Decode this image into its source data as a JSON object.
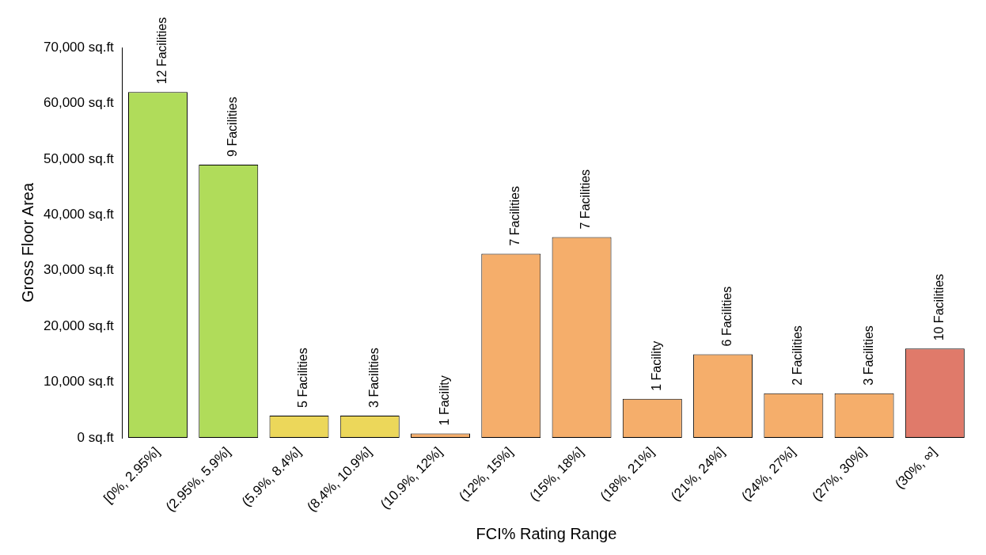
{
  "chart_data": {
    "type": "bar",
    "xlabel": "FCI% Rating Range",
    "ylabel": "Gross Floor Area",
    "categories": [
      "[0%, 2.95%]",
      "(2.95%, 5.9%]",
      "(5.9%, 8.4%]",
      "(8.4%, 10.9%]",
      "(10.9%, 12%]",
      "(12%, 15%]",
      "(15%, 18%]",
      "(18%, 21%]",
      "(21%, 24%]",
      "(24%, 27%]",
      "(27%, 30%]",
      "(30%, ∞]"
    ],
    "values": [
      62000,
      49000,
      4000,
      4000,
      800,
      33000,
      36000,
      7000,
      15000,
      8000,
      8000,
      16000
    ],
    "colors": [
      "#b0dc5a",
      "#b0dc5a",
      "#ecd75a",
      "#ecd75a",
      "#f5ae6b",
      "#f5ae6b",
      "#f5ae6b",
      "#f5ae6b",
      "#f5ae6b",
      "#f5ae6b",
      "#f5ae6b",
      "#e07a6a"
    ],
    "annotations": [
      {
        "text": "12 Facilities",
        "x": "[0%, 2.95%]",
        "y": 62000
      },
      {
        "text": "9 Facilities",
        "x": "(2.95%, 5.9%]",
        "y": 49000
      },
      {
        "text": "5 Facilities",
        "x": "(5.9%, 8.4%]",
        "y": 4000
      },
      {
        "text": "3 Facilities",
        "x": "(8.4%, 10.9%]",
        "y": 4000
      },
      {
        "text": "1 Facility",
        "x": "(10.9%, 12%]",
        "y": 800
      },
      {
        "text": "7 Facilities",
        "x": "(12%, 15%]",
        "y": 33000
      },
      {
        "text": "7 Facilities",
        "x": "(15%, 18%]",
        "y": 36000
      },
      {
        "text": "1 Facility",
        "x": "(18%, 21%]",
        "y": 7000
      },
      {
        "text": "6 Facilities",
        "x": "(21%, 24%]",
        "y": 15000
      },
      {
        "text": "2 Facilities",
        "x": "(24%, 27%]",
        "y": 8000
      },
      {
        "text": "3 Facilities",
        "x": "(27%, 30%]",
        "y": 8000
      },
      {
        "text": "10 Facilities",
        "x": "(30%, ∞]",
        "y": 16000
      }
    ],
    "ylim": [
      0,
      70000
    ],
    "yticks": [
      {
        "value": 0,
        "label": "0 sq.ft"
      },
      {
        "value": 10000,
        "label": "10,000 sq.ft"
      },
      {
        "value": 20000,
        "label": "20,000 sq.ft"
      },
      {
        "value": 30000,
        "label": "30,000 sq.ft"
      },
      {
        "value": 40000,
        "label": "40,000 sq.ft"
      },
      {
        "value": 50000,
        "label": "50,000 sq.ft"
      },
      {
        "value": 60000,
        "label": "60,000 sq.ft"
      },
      {
        "value": 70000,
        "label": "70,000 sq.ft"
      }
    ],
    "grid": false,
    "legend": false
  }
}
